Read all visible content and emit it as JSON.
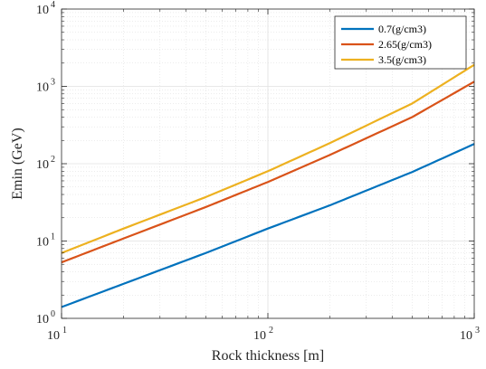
{
  "chart_data": {
    "type": "line",
    "xlabel": "Rock thickness [m]",
    "ylabel": "Emin (GeV)",
    "x_scale": "log",
    "y_scale": "log",
    "xlim": [
      10,
      1000
    ],
    "ylim": [
      1,
      10000
    ],
    "x_ticks": [
      {
        "base": "10",
        "exp": "1",
        "value": 10
      },
      {
        "base": "10",
        "exp": "2",
        "value": 100
      },
      {
        "base": "10",
        "exp": "3",
        "value": 1000
      }
    ],
    "y_ticks": [
      {
        "base": "10",
        "exp": "0",
        "value": 1
      },
      {
        "base": "10",
        "exp": "1",
        "value": 10
      },
      {
        "base": "10",
        "exp": "2",
        "value": 100
      },
      {
        "base": "10",
        "exp": "3",
        "value": 1000
      },
      {
        "base": "10",
        "exp": "4",
        "value": 10000
      }
    ],
    "grid": true,
    "minor_grid": true,
    "legend_position": "top-right",
    "series": [
      {
        "name": "0.7(g/cm3)",
        "color": "#0072BD",
        "x": [
          10,
          20,
          50,
          100,
          200,
          500,
          1000
        ],
        "y": [
          1.4,
          2.8,
          7.0,
          14.5,
          29,
          78,
          180
        ]
      },
      {
        "name": "2.65(g/cm3)",
        "color": "#D95319",
        "x": [
          10,
          20,
          50,
          100,
          200,
          500,
          1000
        ],
        "y": [
          5.3,
          10.8,
          27.5,
          58,
          130,
          400,
          1150
        ]
      },
      {
        "name": "3.5(g/cm3)",
        "color": "#EDB120",
        "x": [
          10,
          20,
          50,
          100,
          200,
          500,
          1000
        ],
        "y": [
          7.0,
          14.5,
          37,
          80,
          185,
          600,
          1900
        ]
      }
    ]
  }
}
